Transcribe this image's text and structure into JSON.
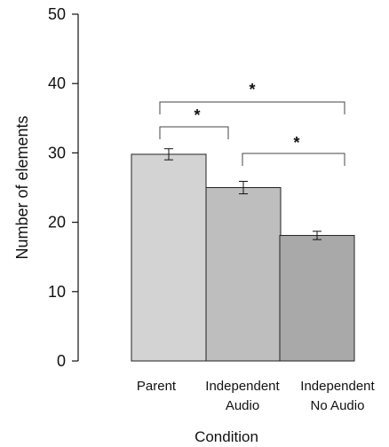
{
  "chart_data": {
    "type": "bar",
    "categories": [
      [
        "Parent"
      ],
      [
        "Independent",
        "Audio"
      ],
      [
        "Independent",
        "No Audio"
      ]
    ],
    "values": [
      29.8,
      25.0,
      18.1
    ],
    "error": [
      0.8,
      0.9,
      0.6
    ],
    "bar_colors": [
      "#d3d3d3",
      "#bebebe",
      "#a9a9a9"
    ],
    "xlabel": "Condition",
    "ylabel": "Number of elements",
    "ylim": [
      0,
      50
    ],
    "yticks": [
      0,
      10,
      20,
      30,
      40,
      50
    ],
    "ytick_labels": [
      "0",
      "10",
      "20",
      "30",
      "40",
      "50"
    ],
    "significance": [
      {
        "from": 0,
        "to": 1,
        "label": "*"
      },
      {
        "from": 0,
        "to": 2,
        "label": "*"
      },
      {
        "from": 1,
        "to": 2,
        "label": "*"
      }
    ],
    "grid": false,
    "legend": "none"
  }
}
